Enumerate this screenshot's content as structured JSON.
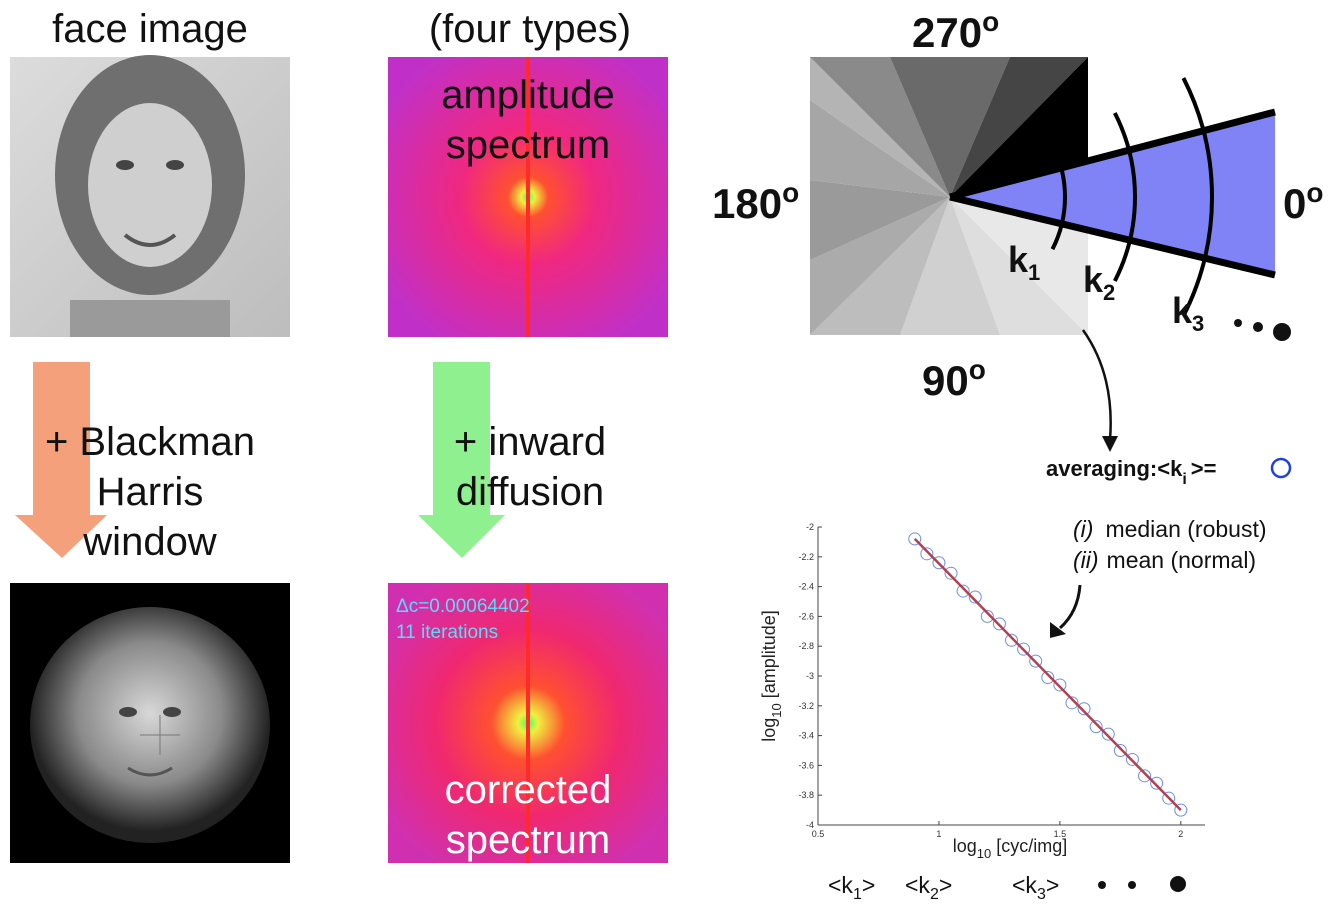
{
  "face_panel": {
    "title": "face image",
    "window_label": [
      "+ Blackman",
      "Harris",
      "window"
    ]
  },
  "spectrum_panel": {
    "title": "(four types)",
    "top_label": [
      "amplitude",
      "spectrum"
    ],
    "diffusion_label": [
      "+ inward",
      "diffusion"
    ],
    "delta": "Δc=0.00064402",
    "iterations": "11 iterations",
    "bottom_label": [
      "corrected",
      "spectrum"
    ]
  },
  "wedge_diagram": {
    "angles": [
      {
        "value": "270",
        "sup": "o"
      },
      {
        "value": "180",
        "sup": "o"
      },
      {
        "value": "0",
        "sup": "o"
      },
      {
        "value": "90",
        "sup": "o"
      }
    ],
    "rings": [
      {
        "k": "k",
        "sub": "1"
      },
      {
        "k": "k",
        "sub": "2"
      },
      {
        "k": "k",
        "sub": "3"
      }
    ]
  },
  "averaging": {
    "text": "averaging:<k",
    "sub": "i",
    "end": ">="
  },
  "methods": [
    {
      "tag": "(i)",
      "text": "median (robust)"
    },
    {
      "tag": "(ii)",
      "text": "mean (normal)"
    }
  ],
  "plot": {
    "type": "scatter",
    "x_label": {
      "main": "log",
      "sub": "10",
      "rest": "[cyc/img]"
    },
    "y_label": {
      "main": "log",
      "sub": "10",
      "rest": "[amplitude]"
    },
    "xlim": [
      0.5,
      2.1
    ],
    "ylim": [
      -4,
      -2
    ],
    "xticks": [
      0.5,
      1,
      1.5,
      2
    ],
    "yticks": [
      -2,
      -2.2,
      -2.4,
      -2.6,
      -2.8,
      -3,
      -3.2,
      -3.4,
      -3.6,
      -3.8,
      -4
    ],
    "x": [
      0.9,
      0.95,
      1.0,
      1.05,
      1.1,
      1.15,
      1.2,
      1.25,
      1.3,
      1.35,
      1.4,
      1.45,
      1.5,
      1.55,
      1.6,
      1.65,
      1.7,
      1.75,
      1.8,
      1.85,
      1.9,
      1.95,
      2.0
    ],
    "y": [
      -2.08,
      -2.18,
      -2.24,
      -2.31,
      -2.43,
      -2.47,
      -2.6,
      -2.65,
      -2.76,
      -2.82,
      -2.9,
      -3.01,
      -3.06,
      -3.18,
      -3.22,
      -3.34,
      -3.39,
      -3.5,
      -3.56,
      -3.67,
      -3.72,
      -3.82,
      -3.9
    ],
    "color": "#6a8ee8",
    "fit": {
      "x": [
        0.9,
        2.0
      ],
      "y": [
        -2.08,
        -3.9
      ],
      "color": "#b24050"
    }
  },
  "bottom_labels": [
    {
      "open": "<k",
      "sub": "1",
      "close": ">"
    },
    {
      "open": "<k",
      "sub": "2",
      "close": ">"
    },
    {
      "open": "<k",
      "sub": "3",
      "close": ">"
    }
  ]
}
